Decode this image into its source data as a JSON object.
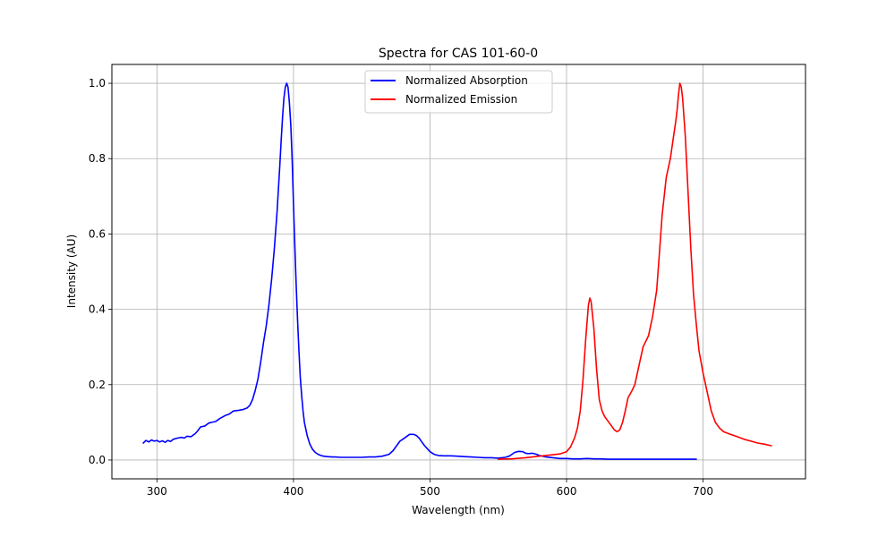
{
  "chart_data": {
    "type": "line",
    "title": "Spectra for CAS 101-60-0",
    "xlabel": "Wavelength (nm)",
    "ylabel": "Intensity (AU)",
    "xlim": [
      267,
      775
    ],
    "ylim": [
      -0.05,
      1.05
    ],
    "xticks": [
      300,
      400,
      500,
      600,
      700
    ],
    "yticks": [
      0.0,
      0.2,
      0.4,
      0.6,
      0.8,
      1.0
    ],
    "xtick_labels": [
      "300",
      "400",
      "500",
      "600",
      "700"
    ],
    "ytick_labels": [
      "0.0",
      "0.2",
      "0.4",
      "0.6",
      "0.8",
      "1.0"
    ],
    "grid": true,
    "legend_position": "top-center",
    "series": [
      {
        "name": "Normalized Absorption",
        "color": "#0000ff",
        "x": [
          290,
          292,
          294,
          296,
          298,
          300,
          302,
          304,
          306,
          308,
          310,
          312,
          315,
          318,
          320,
          322,
          325,
          328,
          330,
          332,
          335,
          338,
          340,
          343,
          346,
          350,
          353,
          356,
          360,
          363,
          366,
          368,
          370,
          372,
          374,
          376,
          378,
          380,
          382,
          384,
          386,
          388,
          390,
          391,
          392,
          393,
          394,
          395,
          396,
          397,
          398,
          399,
          400,
          401,
          402,
          403,
          404,
          405,
          406,
          407,
          408,
          410,
          412,
          414,
          416,
          418,
          420,
          422,
          425,
          428,
          430,
          435,
          440,
          445,
          450,
          455,
          460,
          465,
          470,
          473,
          476,
          478,
          480,
          482,
          485,
          488,
          490,
          492,
          494,
          496,
          498,
          500,
          503,
          506,
          510,
          515,
          520,
          525,
          530,
          535,
          540,
          545,
          550,
          555,
          558,
          560,
          562,
          565,
          568,
          570,
          572,
          575,
          578,
          580,
          585,
          590,
          595,
          600,
          605,
          610,
          615,
          620,
          625,
          630,
          640,
          650,
          660,
          670,
          680,
          690,
          695
        ],
        "y": [
          0.045,
          0.052,
          0.048,
          0.053,
          0.05,
          0.052,
          0.048,
          0.051,
          0.047,
          0.052,
          0.049,
          0.055,
          0.058,
          0.06,
          0.058,
          0.063,
          0.062,
          0.07,
          0.078,
          0.088,
          0.09,
          0.098,
          0.1,
          0.102,
          0.11,
          0.118,
          0.122,
          0.13,
          0.132,
          0.134,
          0.138,
          0.145,
          0.16,
          0.185,
          0.215,
          0.26,
          0.31,
          0.355,
          0.41,
          0.48,
          0.56,
          0.66,
          0.78,
          0.85,
          0.91,
          0.96,
          0.99,
          1.0,
          0.99,
          0.95,
          0.89,
          0.8,
          0.68,
          0.57,
          0.46,
          0.37,
          0.29,
          0.22,
          0.17,
          0.13,
          0.1,
          0.065,
          0.042,
          0.028,
          0.02,
          0.015,
          0.012,
          0.01,
          0.009,
          0.008,
          0.008,
          0.007,
          0.007,
          0.007,
          0.007,
          0.008,
          0.008,
          0.01,
          0.015,
          0.025,
          0.04,
          0.05,
          0.055,
          0.06,
          0.068,
          0.068,
          0.065,
          0.058,
          0.048,
          0.038,
          0.03,
          0.022,
          0.015,
          0.012,
          0.011,
          0.011,
          0.01,
          0.009,
          0.008,
          0.007,
          0.006,
          0.006,
          0.005,
          0.007,
          0.01,
          0.015,
          0.02,
          0.023,
          0.022,
          0.018,
          0.017,
          0.018,
          0.015,
          0.012,
          0.008,
          0.006,
          0.004,
          0.004,
          0.003,
          0.003,
          0.004,
          0.003,
          0.003,
          0.002,
          0.002,
          0.002,
          0.002,
          0.002,
          0.002,
          0.002,
          0.002
        ]
      },
      {
        "name": "Normalized Emission",
        "color": "#ff0000",
        "x": [
          550,
          560,
          570,
          580,
          590,
          595,
          600,
          603,
          606,
          608,
          610,
          612,
          614,
          616,
          617,
          618,
          620,
          622,
          624,
          626,
          628,
          630,
          633,
          635,
          637,
          639,
          641,
          643,
          645,
          648,
          650,
          653,
          656,
          660,
          663,
          666,
          668,
          670,
          673,
          676,
          678,
          680,
          681,
          682,
          683,
          684,
          685,
          687,
          689,
          691,
          693,
          695,
          697,
          700,
          703,
          706,
          709,
          712,
          715,
          720,
          725,
          730,
          735,
          740,
          745,
          750
        ],
        "y": [
          0.002,
          0.003,
          0.006,
          0.01,
          0.014,
          0.016,
          0.022,
          0.035,
          0.06,
          0.085,
          0.13,
          0.21,
          0.32,
          0.41,
          0.43,
          0.42,
          0.35,
          0.24,
          0.16,
          0.13,
          0.115,
          0.105,
          0.09,
          0.08,
          0.075,
          0.08,
          0.1,
          0.13,
          0.165,
          0.185,
          0.2,
          0.25,
          0.3,
          0.33,
          0.38,
          0.45,
          0.55,
          0.65,
          0.75,
          0.8,
          0.85,
          0.9,
          0.93,
          0.97,
          1.0,
          0.99,
          0.96,
          0.86,
          0.71,
          0.56,
          0.44,
          0.36,
          0.29,
          0.23,
          0.18,
          0.13,
          0.1,
          0.085,
          0.075,
          0.068,
          0.062,
          0.055,
          0.05,
          0.045,
          0.042,
          0.038
        ]
      }
    ]
  }
}
